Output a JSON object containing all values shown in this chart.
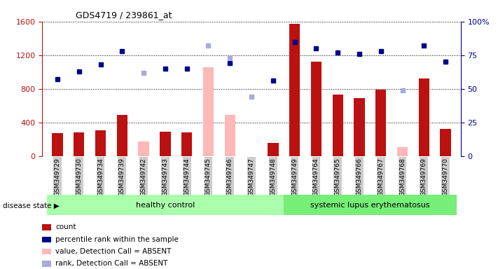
{
  "title": "GDS4719 / 239861_at",
  "samples": [
    "GSM349729",
    "GSM349730",
    "GSM349734",
    "GSM349739",
    "GSM349742",
    "GSM349743",
    "GSM349744",
    "GSM349745",
    "GSM349746",
    "GSM349747",
    "GSM349748",
    "GSM349749",
    "GSM349764",
    "GSM349765",
    "GSM349766",
    "GSM349767",
    "GSM349768",
    "GSM349769",
    "GSM349770"
  ],
  "healthy_indices": [
    0,
    1,
    2,
    3,
    4,
    5,
    6,
    7,
    8,
    9,
    10
  ],
  "sle_indices": [
    11,
    12,
    13,
    14,
    15,
    16,
    17,
    18
  ],
  "count_values": [
    270,
    280,
    310,
    490,
    null,
    290,
    285,
    null,
    null,
    null,
    160,
    1570,
    1120,
    730,
    690,
    790,
    null,
    920,
    320
  ],
  "count_absent": [
    null,
    null,
    null,
    null,
    175,
    null,
    null,
    1060,
    490,
    null,
    null,
    null,
    null,
    null,
    null,
    null,
    110,
    null,
    null
  ],
  "pct_present": [
    57,
    63,
    68,
    78,
    null,
    65,
    65,
    null,
    69,
    null,
    56,
    85,
    80,
    77,
    76,
    78,
    null,
    82,
    70
  ],
  "pct_absent": [
    null,
    null,
    null,
    null,
    62,
    null,
    null,
    82,
    73,
    44,
    null,
    null,
    null,
    null,
    null,
    null,
    49,
    null,
    null
  ],
  "ylim_left": [
    0,
    1600
  ],
  "ylim_right": [
    0,
    100
  ],
  "yticks_left": [
    0,
    400,
    800,
    1200,
    1600
  ],
  "yticks_right": [
    0,
    25,
    50,
    75,
    100
  ],
  "bar_color_present": "#bb1111",
  "bar_color_absent": "#ffb8b8",
  "dot_color_present": "#00008b",
  "dot_color_absent": "#aaaadd",
  "hc_color": "#aaffaa",
  "sle_color": "#77ee77",
  "bar_width": 0.5
}
